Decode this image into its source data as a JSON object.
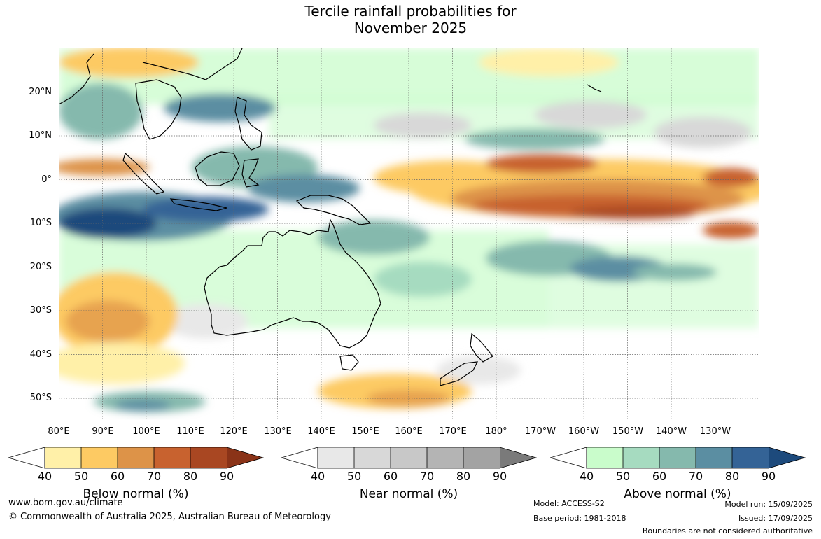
{
  "title_line1": "Tercile rainfall probabilities for",
  "title_line2": "November 2025",
  "lat_labels": [
    "20°N",
    "10°N",
    "0°",
    "10°S",
    "20°S",
    "30°S",
    "40°S",
    "50°S"
  ],
  "lon_labels": [
    "80°E",
    "90°E",
    "100°E",
    "110°E",
    "120°E",
    "130°E",
    "140°E",
    "150°E",
    "160°E",
    "170°E",
    "180°",
    "170°W",
    "160°W",
    "150°W",
    "140°W",
    "130°W"
  ],
  "colorbars": [
    {
      "title": "Below normal (%)",
      "ticks": [
        "40",
        "50",
        "60",
        "70",
        "80",
        "90"
      ],
      "colors": [
        "#fff0a8",
        "#fdca63",
        "#dd9348",
        "#c8622f",
        "#a94722"
      ],
      "extend": "#8a3318"
    },
    {
      "title": "Near normal (%)",
      "ticks": [
        "40",
        "50",
        "60",
        "70",
        "80",
        "90"
      ],
      "colors": [
        "#e8e8e8",
        "#d8d8d8",
        "#c8c8c8",
        "#b4b4b4",
        "#a3a3a3"
      ],
      "extend": "#7a7a7a"
    },
    {
      "title": "Above normal (%)",
      "ticks": [
        "40",
        "50",
        "60",
        "70",
        "80",
        "90"
      ],
      "colors": [
        "#c9fccb",
        "#a6dbc0",
        "#85b9ad",
        "#5b8ea2",
        "#346396"
      ],
      "extend": "#1d4a7c"
    }
  ],
  "footer": {
    "website": "www.bom.gov.au/climate",
    "copyright": "© Commonwealth of Australia 2025, Australian Bureau of Meteorology",
    "model": "Model: ACCESS-S2",
    "base_period": "Base period: 1981-2018",
    "model_run": "Model run: 15/09/2025",
    "issued": "Issued: 17/09/2025",
    "disclaimer": "Boundaries are not considered authoritative"
  },
  "colors": {
    "below_normal": "#c8622f",
    "near_normal": "#c8c8c8",
    "above_normal": "#5b8ea2",
    "coastline": "#000000"
  }
}
